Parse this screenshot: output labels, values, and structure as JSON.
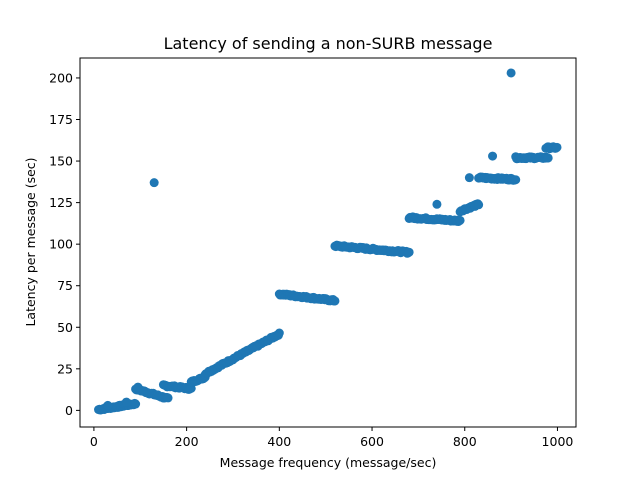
{
  "chart_data": {
    "type": "scatter",
    "title": "Latency of sending a non-SURB message",
    "xlabel": "Message frequency (message/sec)",
    "ylabel": "Latency per message (sec)",
    "xlim": [
      -30,
      1040
    ],
    "ylim": [
      -10,
      212
    ],
    "xticks": [
      0,
      200,
      400,
      600,
      800,
      1000
    ],
    "yticks": [
      0,
      25,
      50,
      75,
      100,
      125,
      150,
      175,
      200
    ],
    "grid": false,
    "legend": "none",
    "color": "#1f77b4",
    "segments": [
      {
        "x_start": 10,
        "x_end": 90,
        "y_start": 0.5,
        "y_end": 4
      },
      {
        "x_start": 90,
        "x_end": 160,
        "y_start": 13,
        "y_end": 7
      },
      {
        "x_start": 150,
        "x_end": 210,
        "y_start": 15,
        "y_end": 13
      },
      {
        "x_start": 210,
        "x_end": 240,
        "y_start": 17,
        "y_end": 20
      },
      {
        "x_start": 240,
        "x_end": 400,
        "y_start": 22,
        "y_end": 46
      },
      {
        "x_start": 400,
        "x_end": 520,
        "y_start": 70,
        "y_end": 66
      },
      {
        "x_start": 520,
        "x_end": 680,
        "y_start": 99,
        "y_end": 95
      },
      {
        "x_start": 680,
        "x_end": 790,
        "y_start": 116,
        "y_end": 114
      },
      {
        "x_start": 790,
        "x_end": 830,
        "y_start": 120,
        "y_end": 124
      },
      {
        "x_start": 830,
        "x_end": 910,
        "y_start": 140,
        "y_end": 139
      },
      {
        "x_start": 910,
        "x_end": 980,
        "y_start": 152,
        "y_end": 152
      },
      {
        "x_start": 975,
        "x_end": 1000,
        "y_start": 158,
        "y_end": 158
      }
    ],
    "outliers": [
      {
        "x": 130,
        "y": 137
      },
      {
        "x": 740,
        "y": 124
      },
      {
        "x": 810,
        "y": 140
      },
      {
        "x": 860,
        "y": 153
      },
      {
        "x": 900,
        "y": 203
      },
      {
        "x": 30,
        "y": 3
      },
      {
        "x": 70,
        "y": 5
      },
      {
        "x": 95,
        "y": 14
      }
    ]
  }
}
